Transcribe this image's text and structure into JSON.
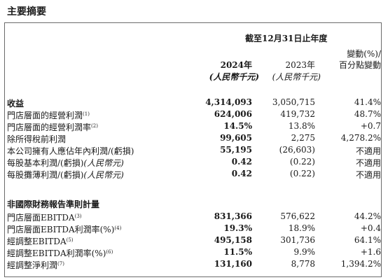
{
  "title": "主要摘要",
  "header": {
    "period": "截至12月31日止年度",
    "col2024_year": "2024年",
    "col2024_unit": "(人民幣千元)",
    "col2023_year": "2023年",
    "col2023_unit": "(人民幣千元)",
    "change_line1": "變動(%)/",
    "change_line2": "百分點變動"
  },
  "section1": {
    "rows": [
      {
        "label": "收益",
        "note": "",
        "bold": true,
        "v2024": "4,314,093",
        "v2023": "3,050,715",
        "change": "41.4%"
      },
      {
        "label": "門店層面的經營利潤",
        "note": "(1)",
        "bold": false,
        "v2024": "624,006",
        "v2023": "419,732",
        "change": "48.7%"
      },
      {
        "label": "門店層面的經營利潤率",
        "note": "(2)",
        "bold": false,
        "v2024": "14.5%",
        "v2023": "13.8%",
        "change": "+0.7"
      },
      {
        "label": "除所得稅前利潤",
        "note": "",
        "bold": false,
        "v2024": "99,605",
        "v2023": "2,275",
        "change": "4,278.2%"
      },
      {
        "label": "本公司擁有人應佔年內利潤/(虧損)",
        "note": "",
        "bold": false,
        "v2024": "55,195",
        "v2023": "(26,603)",
        "change": "不適用"
      },
      {
        "label": "每股基本利潤/(虧損)",
        "note": "",
        "bold": false,
        "unit": "(人民幣元)",
        "v2024": "0.42",
        "v2023": "(0.22)",
        "change": "不適用"
      },
      {
        "label": "每股攤薄利潤/(虧損)",
        "note": "",
        "bold": false,
        "unit": "(人民幣元)",
        "v2024": "0.42",
        "v2023": "(0.22)",
        "change": "不適用"
      }
    ]
  },
  "section2": {
    "title": "非國際財務報告準則計量",
    "rows": [
      {
        "label": "門店層面EBITDA",
        "note": "(3)",
        "v2024": "831,366",
        "v2023": "576,622",
        "change": "44.2%"
      },
      {
        "label": "門店層面EBITDA利潤率(%)",
        "note": "(4)",
        "v2024": "19.3%",
        "v2023": "18.9%",
        "change": "+0.4"
      },
      {
        "label": "經調整EBITDA",
        "note": "(5)",
        "v2024": "495,158",
        "v2023": "301,736",
        "change": "64.1%"
      },
      {
        "label": "經調整EBITDA利潤率(%)",
        "note": "(6)",
        "v2024": "11.5%",
        "v2023": "9.9%",
        "change": "+1.6"
      },
      {
        "label": "經調整淨利潤",
        "note": "(7)",
        "v2024": "131,160",
        "v2023": "8,778",
        "change": "1,394.2%"
      }
    ]
  }
}
